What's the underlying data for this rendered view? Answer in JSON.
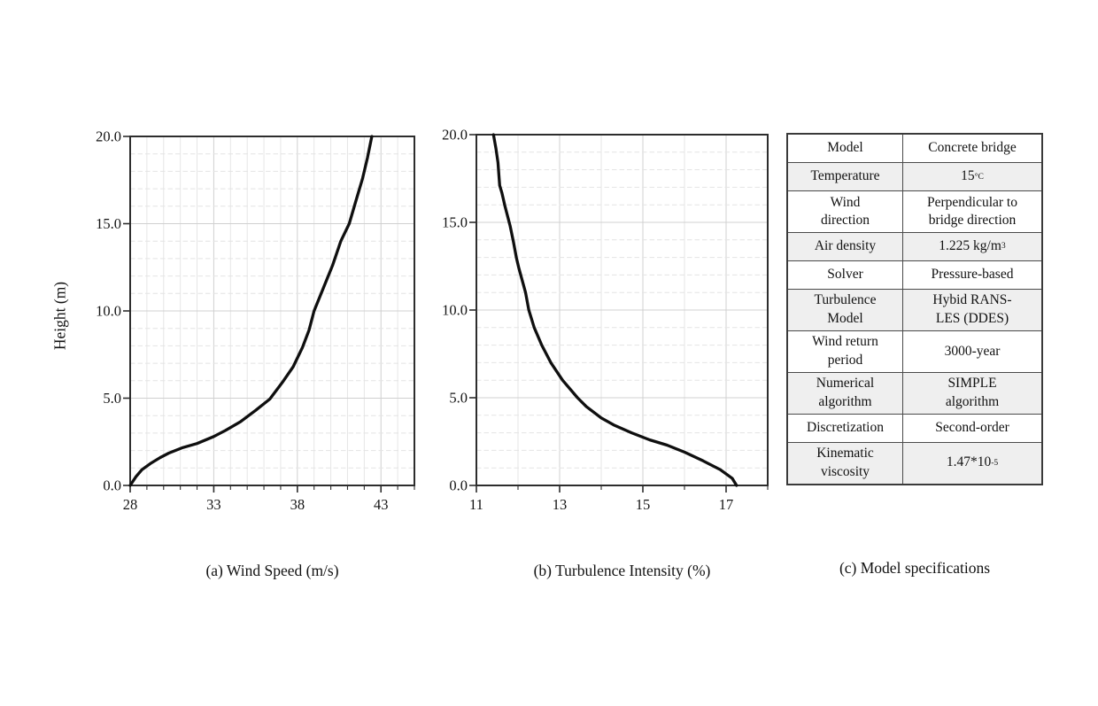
{
  "figure": {
    "ylabel": "Height (m)",
    "captions": {
      "a": "(a) Wind Speed (m/s)",
      "b": "(b) Turbulence Intensity (%)",
      "c": "(c) Model specifications"
    }
  },
  "chart_data": [
    {
      "type": "line",
      "id": "wind-speed",
      "title": "(a) Wind Speed (m/s)",
      "xlabel": "Wind Speed (m/s)",
      "ylabel": "Height (m)",
      "xlim": [
        28,
        45
      ],
      "ylim": [
        0,
        20
      ],
      "xticks": [
        28,
        33,
        38,
        43
      ],
      "xtick_labels": [
        "28",
        "33",
        "38",
        "43"
      ],
      "yticks": [
        0,
        5,
        10,
        15,
        20
      ],
      "ytick_labels": [
        "0.0",
        "5.0",
        "10.0",
        "15.0",
        "20.0"
      ],
      "grid": true,
      "minor_grid_step": 1,
      "legend": "none",
      "series": [
        {
          "name": "wind-speed-profile",
          "color": "#0f0f0f",
          "points": [
            [
              28.0,
              0
            ],
            [
              28.35,
              0.5
            ],
            [
              28.7,
              0.9
            ],
            [
              29.2,
              1.25
            ],
            [
              29.8,
              1.6
            ],
            [
              30.3,
              1.85
            ],
            [
              31.1,
              2.15
            ],
            [
              32.0,
              2.4
            ],
            [
              33.0,
              2.8
            ],
            [
              33.7,
              3.15
            ],
            [
              34.6,
              3.65
            ],
            [
              35.5,
              4.3
            ],
            [
              36.35,
              4.95
            ],
            [
              37.1,
              5.9
            ],
            [
              37.75,
              6.8
            ],
            [
              38.3,
              7.9
            ],
            [
              38.7,
              8.9
            ],
            [
              39.0,
              10.0
            ],
            [
              39.55,
              11.3
            ],
            [
              40.1,
              12.6
            ],
            [
              40.6,
              14.0
            ],
            [
              41.1,
              15.0
            ],
            [
              41.5,
              16.3
            ],
            [
              41.9,
              17.6
            ],
            [
              42.2,
              18.8
            ],
            [
              42.45,
              20.0
            ]
          ]
        }
      ]
    },
    {
      "type": "line",
      "id": "turbulence-intensity",
      "title": "(b) Turbulence Intensity (%)",
      "xlabel": "Turbulence Intensity (%)",
      "ylabel": "Height (m)",
      "xlim": [
        11,
        18
      ],
      "ylim": [
        0,
        20
      ],
      "xticks": [
        11,
        13,
        15,
        17
      ],
      "xtick_labels": [
        "11",
        "13",
        "15",
        "17"
      ],
      "yticks": [
        0,
        5,
        10,
        15,
        20
      ],
      "ytick_labels": [
        "0.0",
        "5.0",
        "10.0",
        "15.0",
        "20.0"
      ],
      "grid": true,
      "minor_grid_step": 1,
      "legend": "none",
      "series": [
        {
          "name": "turbulence-intensity-profile",
          "color": "#0f0f0f",
          "points": [
            [
              17.25,
              0
            ],
            [
              17.15,
              0.4
            ],
            [
              16.86,
              0.9
            ],
            [
              16.45,
              1.4
            ],
            [
              16.0,
              1.9
            ],
            [
              15.58,
              2.3
            ],
            [
              15.16,
              2.6
            ],
            [
              14.73,
              3.0
            ],
            [
              14.3,
              3.45
            ],
            [
              14.0,
              3.85
            ],
            [
              13.64,
              4.5
            ],
            [
              13.43,
              5.0
            ],
            [
              13.07,
              6.0
            ],
            [
              12.79,
              7.0
            ],
            [
              12.57,
              8.0
            ],
            [
              12.39,
              9.0
            ],
            [
              12.26,
              10.0
            ],
            [
              12.18,
              11.0
            ],
            [
              12.1,
              11.7
            ],
            [
              12.02,
              12.4
            ],
            [
              11.96,
              13.0
            ],
            [
              11.89,
              13.9
            ],
            [
              11.81,
              14.8
            ],
            [
              11.69,
              15.9
            ],
            [
              11.61,
              16.7
            ],
            [
              11.56,
              17.1
            ],
            [
              11.54,
              17.7
            ],
            [
              11.52,
              18.4
            ],
            [
              11.47,
              19.2
            ],
            [
              11.41,
              20.0
            ]
          ]
        }
      ]
    }
  ],
  "table": {
    "name": "Model specifications",
    "rows": [
      {
        "label": "Model",
        "value": "Concrete bridge"
      },
      {
        "label": "Temperature",
        "value": "15",
        "value_sup": "°C"
      },
      {
        "label": "Wind\ndirection",
        "value": "Perpendicular to\nbridge direction"
      },
      {
        "label": "Air density",
        "value": "1.225 kg/m",
        "value_sup": "3"
      },
      {
        "label": "Solver",
        "value": "Pressure-based"
      },
      {
        "label": "Turbulence\nModel",
        "value": "Hybid RANS-\nLES (DDES)"
      },
      {
        "label": "Wind return\nperiod",
        "value": "3000-year"
      },
      {
        "label": "Numerical\nalgorithm",
        "value": "SIMPLE\nalgorithm"
      },
      {
        "label": "Discretization",
        "value": "Second-order"
      },
      {
        "label": "Kinematic\nviscosity",
        "value": "1.47*10",
        "value_sup": "-5"
      }
    ]
  },
  "style": {
    "curve_color": "#0f0f0f",
    "axis_color": "#2d2d2d",
    "major_grid_color": "#d0d0d0",
    "minor_grid_color": "#e6e6e6",
    "table_alt_row_color": "#efefef"
  }
}
